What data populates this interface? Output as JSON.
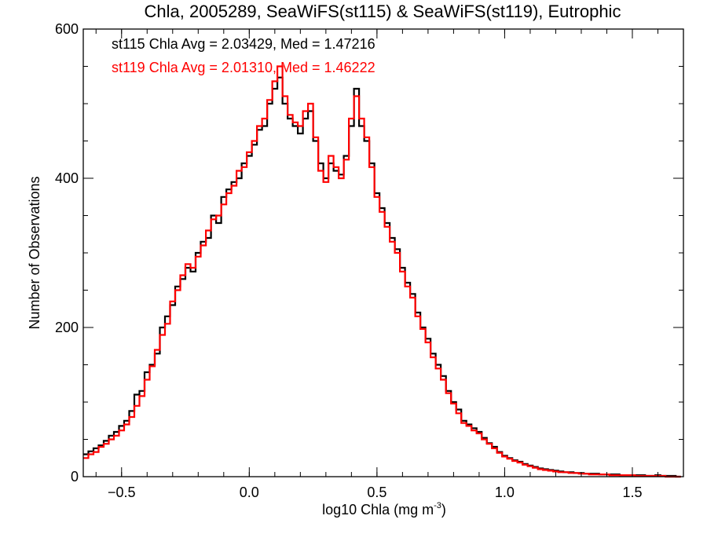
{
  "chart_data": {
    "type": "histogram-step",
    "title": "Chla, 2005289, SeaWiFS(st115) & SeaWiFS(st119), Eutrophic",
    "xlabel": "log10 Chla (mg m",
    "xlabel_sup": "-3",
    "xlabel_end": ")",
    "ylabel": "Number of Observations",
    "xlim": [
      -0.65,
      1.7
    ],
    "ylim": [
      0,
      600
    ],
    "xticks": [
      -0.5,
      0.0,
      0.5,
      1.0,
      1.5
    ],
    "xtick_labels": [
      "−0.5",
      "0.0",
      "0.5",
      "1.0",
      "1.5"
    ],
    "xminor_step": 0.1,
    "yticks": [
      0,
      200,
      400,
      600
    ],
    "ytick_labels": [
      "0",
      "200",
      "400",
      "600"
    ],
    "yminor_step": 50,
    "bin_start": -0.65,
    "bin_width": 0.02,
    "annotations": [
      {
        "text": "st115 Chla Avg = 2.03429, Med = 1.47216",
        "color": "#000000"
      },
      {
        "text": "st119 Chla Avg = 2.01310, Med = 1.46222",
        "color": "#ff0000"
      }
    ],
    "series": [
      {
        "name": "st115",
        "color": "#000000",
        "values": [
          30,
          34,
          38,
          42,
          48,
          55,
          60,
          68,
          75,
          88,
          110,
          115,
          140,
          150,
          165,
          200,
          215,
          230,
          255,
          265,
          280,
          275,
          300,
          315,
          320,
          350,
          340,
          375,
          385,
          395,
          400,
          420,
          430,
          445,
          465,
          470,
          500,
          520,
          535,
          500,
          480,
          470,
          460,
          480,
          490,
          450,
          420,
          400,
          420,
          410,
          405,
          430,
          470,
          520,
          470,
          450,
          420,
          380,
          360,
          340,
          320,
          305,
          280,
          260,
          245,
          220,
          200,
          185,
          165,
          150,
          135,
          115,
          100,
          90,
          75,
          70,
          65,
          60,
          52,
          45,
          40,
          33,
          28,
          25,
          22,
          20,
          17,
          15,
          13,
          11,
          10,
          9,
          8,
          7,
          6,
          6,
          5,
          5,
          4,
          4,
          4,
          3,
          3,
          3,
          3,
          2,
          2,
          2,
          2,
          2,
          1,
          1,
          2,
          1,
          1,
          1,
          0
        ]
      },
      {
        "name": "st119",
        "color": "#ff0000",
        "values": [
          25,
          30,
          33,
          40,
          44,
          50,
          55,
          62,
          70,
          80,
          95,
          108,
          130,
          148,
          170,
          190,
          205,
          235,
          250,
          270,
          285,
          280,
          295,
          310,
          330,
          345,
          350,
          365,
          380,
          390,
          410,
          415,
          435,
          450,
          470,
          480,
          505,
          530,
          550,
          510,
          485,
          475,
          470,
          490,
          500,
          455,
          410,
          395,
          430,
          415,
          400,
          425,
          480,
          510,
          480,
          455,
          415,
          375,
          355,
          335,
          315,
          300,
          275,
          255,
          240,
          215,
          198,
          180,
          160,
          145,
          130,
          112,
          98,
          85,
          72,
          68,
          62,
          58,
          50,
          44,
          38,
          32,
          27,
          24,
          21,
          19,
          16,
          14,
          12,
          10,
          9,
          8,
          7,
          6,
          6,
          5,
          5,
          4,
          4,
          3,
          3,
          3,
          3,
          2,
          2,
          2,
          2,
          2,
          1,
          1,
          1,
          1,
          1,
          1,
          0,
          0,
          0
        ]
      }
    ]
  }
}
